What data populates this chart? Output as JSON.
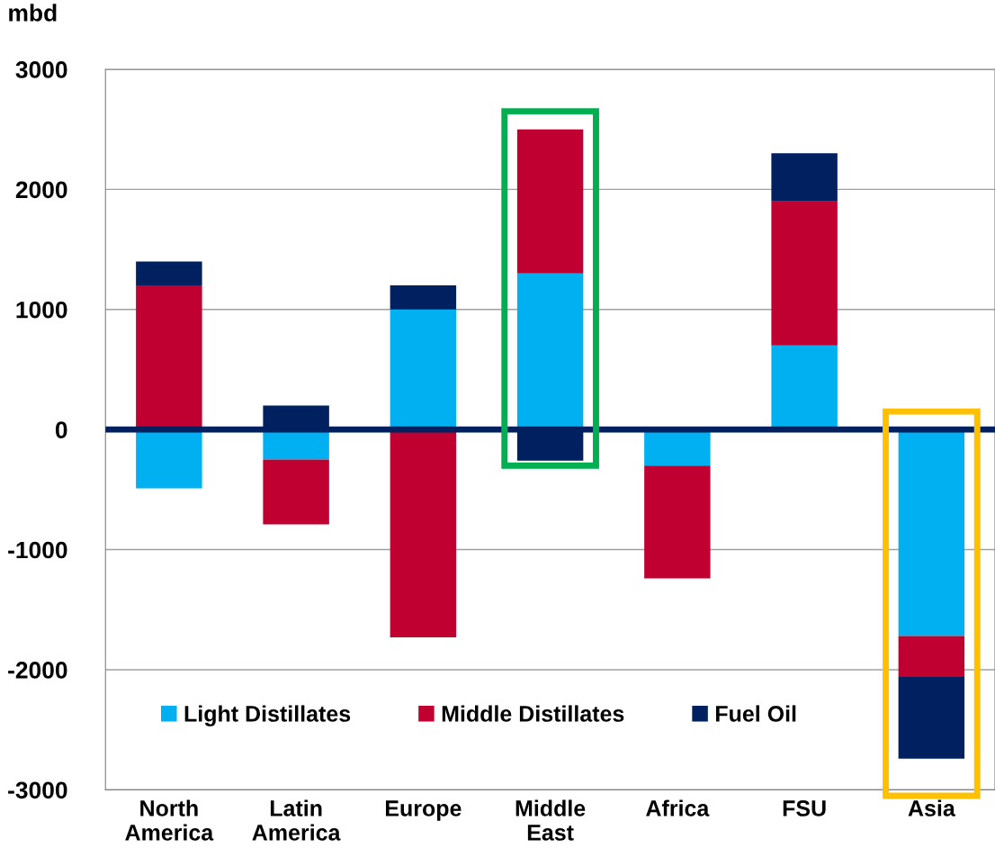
{
  "chart_data": {
    "type": "bar",
    "stacked": true,
    "ylabel": "mbd",
    "categories": [
      "North\nAmerica",
      "Latin\nAmerica",
      "Europe",
      "Middle\nEast",
      "Africa",
      "FSU",
      "Asia"
    ],
    "series": [
      {
        "name": "Light Distillates",
        "color": "#00b0f0",
        "values": [
          -490,
          -250,
          1000,
          1300,
          -300,
          700,
          -1720
        ]
      },
      {
        "name": "Middle Distillates",
        "color": "#c00030",
        "values": [
          1200,
          -540,
          -1730,
          1200,
          -940,
          1200,
          -340
        ]
      },
      {
        "name": "Fuel Oil",
        "color": "#002060",
        "values": [
          200,
          200,
          200,
          -260,
          null,
          400,
          -680
        ]
      }
    ],
    "ylim": [
      -3000,
      3000
    ],
    "yticks": [
      {
        "value": -3000,
        "label": "-3000"
      },
      {
        "value": -2000,
        "label": "-2000"
      },
      {
        "value": -1000,
        "label": "-1000"
      },
      0,
      1000,
      2000,
      3000
    ],
    "ref_lines": [
      {
        "axis": "y",
        "value": 0,
        "color": "#002060"
      }
    ],
    "grid": "y",
    "legend": "bottom"
  }
}
